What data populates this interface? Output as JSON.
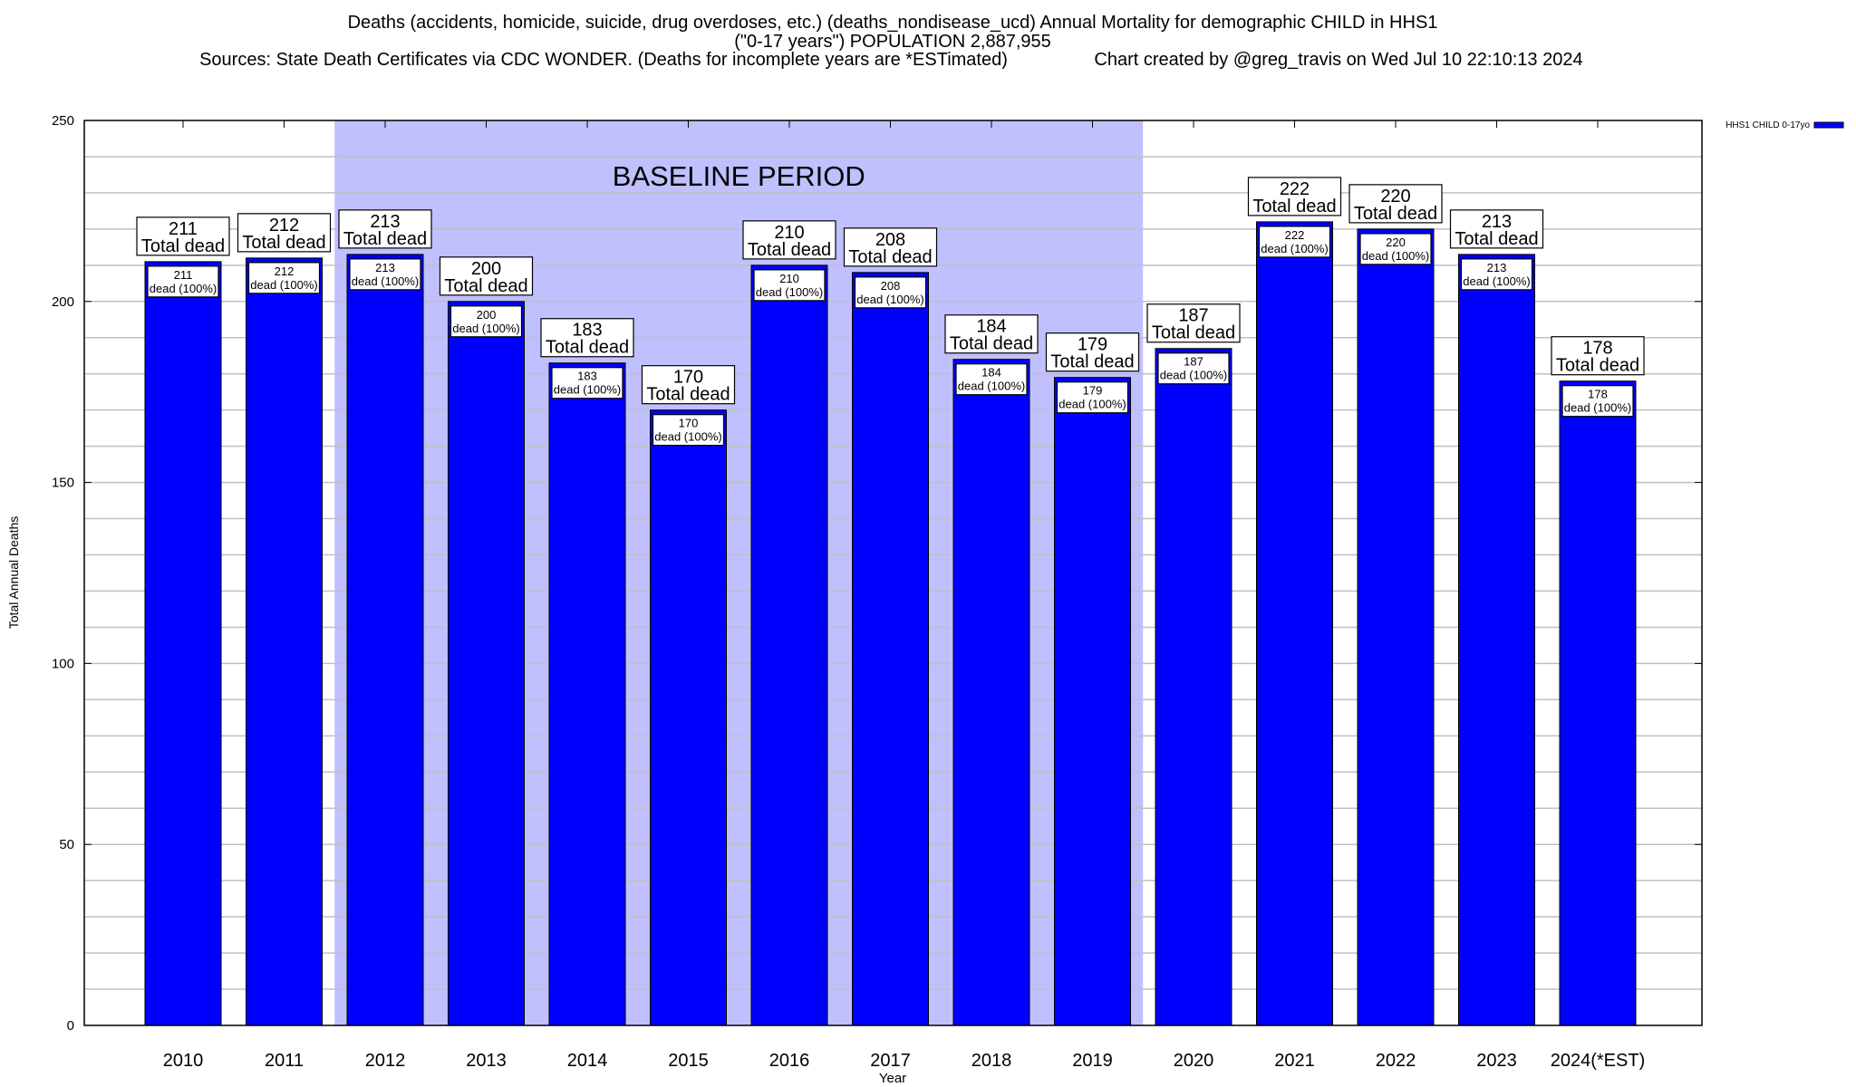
{
  "title": {
    "line1": "Deaths (accidents, homicide, suicide, drug overdoses, etc.) (deaths_nondisease_ucd) Annual Mortality for demographic CHILD in HHS1",
    "line2": "(\"0-17 years\") POPULATION 2,887,955",
    "sources": "Sources: State Death Certificates via CDC WONDER. (Deaths for incomplete years are *ESTimated)",
    "credit": "Chart created by @greg_travis on Wed Jul 10 22:10:13 2024"
  },
  "chart_data": {
    "type": "bar",
    "xlabel": "Year",
    "ylabel": "Total Annual Deaths",
    "ylim": [
      0,
      250
    ],
    "yticks": [
      0,
      50,
      100,
      150,
      200,
      250
    ],
    "grid": true,
    "grid_step": 10,
    "legend_placement": "top-right, outside plot",
    "categories": [
      "2010",
      "2011",
      "2012",
      "2013",
      "2014",
      "2015",
      "2016",
      "2017",
      "2018",
      "2019",
      "2020",
      "2021",
      "2022",
      "2023",
      "2024(*EST)"
    ],
    "series": [
      {
        "name": "HHS1 CHILD 0-17yo",
        "color": "#0000ff",
        "values": [
          211,
          212,
          213,
          200,
          183,
          170,
          210,
          208,
          184,
          179,
          187,
          222,
          220,
          213,
          178
        ]
      }
    ],
    "total_label_suffix": "Total dead",
    "inner_label_suffix": "dead (100%)",
    "annotation": {
      "text": "BASELINE PERIOD",
      "from": "2012",
      "to": "2019",
      "color": "#c0c0ff"
    }
  }
}
